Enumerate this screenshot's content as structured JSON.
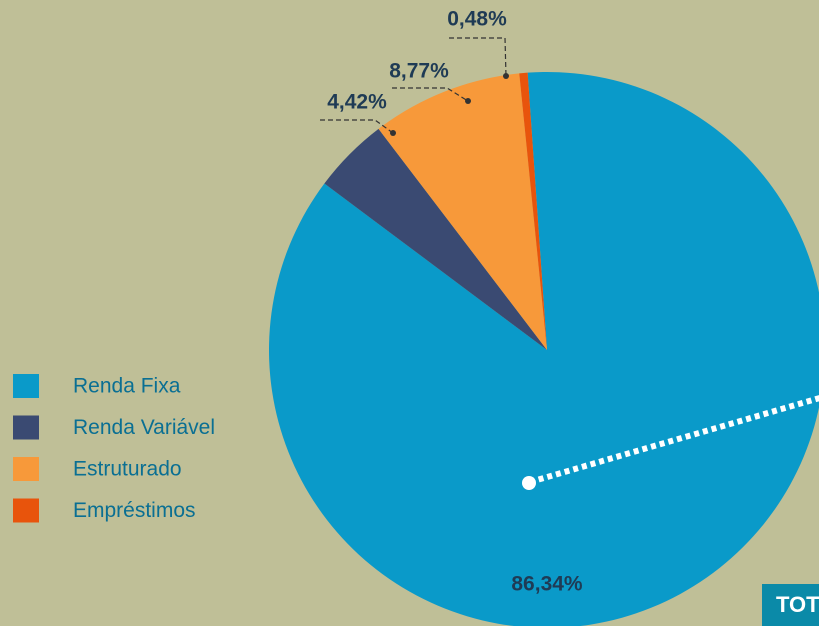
{
  "chart_data": {
    "type": "pie",
    "categories": [
      "Renda Fixa",
      "Renda Variável",
      "Estruturado",
      "Empréstimos"
    ],
    "values": [
      86.34,
      4.42,
      8.77,
      0.48
    ],
    "value_labels": [
      "86,34%",
      "4,42%",
      "8,77%",
      "0,48%"
    ],
    "colors": [
      "#0a9ac9",
      "#3a4a72",
      "#f7993a",
      "#e8540c"
    ],
    "legend": "left",
    "total_label": "TOT"
  }
}
